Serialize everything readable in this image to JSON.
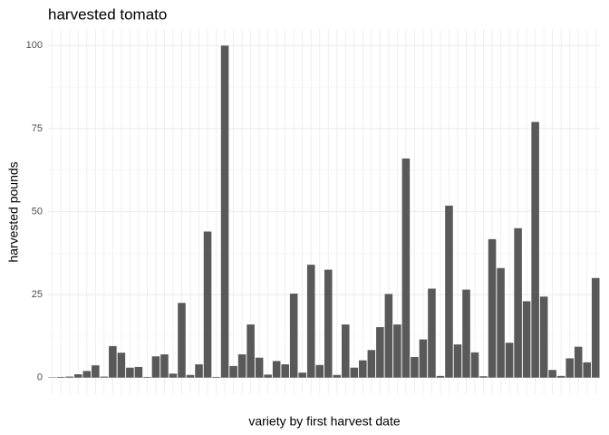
{
  "chart_data": {
    "type": "bar",
    "title": "harvested tomato",
    "x_label": "variety by first harvest date",
    "y_label": "harvested pounds",
    "categories": [
      null,
      null,
      null,
      null,
      null,
      null,
      null,
      null,
      null,
      null,
      null,
      null,
      null,
      null,
      null,
      null,
      null,
      null,
      null,
      null,
      null,
      null,
      null,
      null,
      null,
      null,
      null,
      null,
      null,
      null,
      null,
      null,
      null,
      null,
      null,
      null,
      null,
      null,
      null,
      null,
      null,
      null,
      null,
      null,
      null,
      null,
      null,
      null,
      null,
      null,
      null,
      null,
      null,
      null,
      null,
      null,
      null,
      null,
      null,
      null,
      null,
      null,
      null,
      null
    ],
    "values": [
      0.1,
      0.2,
      0.3,
      1,
      2,
      3.7,
      0.3,
      9.5,
      7.5,
      3,
      3.2,
      0.2,
      6.4,
      7,
      1.2,
      22.5,
      0.8,
      4,
      44,
      0.2,
      100,
      3.5,
      7,
      16,
      6,
      0.9,
      5,
      4,
      25.3,
      1.5,
      34,
      3.8,
      32.5,
      0.8,
      16,
      3,
      5.2,
      8.3,
      15.2,
      25.2,
      16,
      66,
      6.2,
      11.5,
      26.8,
      0.5,
      51.8,
      10,
      26.5,
      7.6,
      0.4,
      41.7,
      33,
      10.5,
      45,
      23,
      77,
      24.4,
      2.3,
      0.5,
      5.8,
      9.3,
      4.6,
      30
    ],
    "color": "#595959",
    "ylim": [
      -5,
      105
    ],
    "yticks": [
      0,
      25,
      50,
      75,
      100
    ],
    "grid": true
  }
}
